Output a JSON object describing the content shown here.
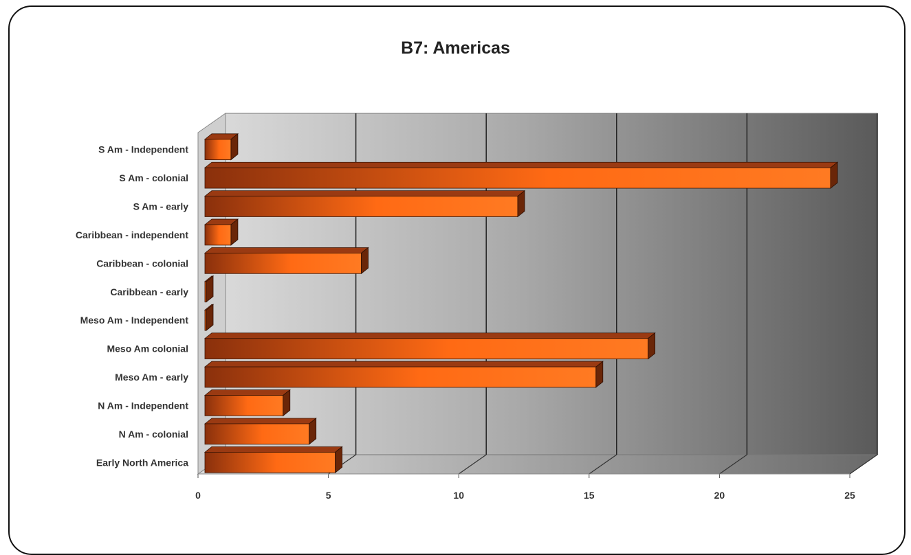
{
  "chart_data": {
    "type": "bar",
    "orientation": "horizontal",
    "style": "3d",
    "title": "B7: Americas",
    "xlabel": "",
    "ylabel": "",
    "xlim": [
      0,
      25
    ],
    "xticks": [
      0,
      5,
      10,
      15,
      20,
      25
    ],
    "grid": true,
    "categories": [
      "S Am - Independent",
      "S Am - colonial",
      "S Am - early",
      "Caribbean - independent",
      "Caribbean - colonial",
      "Caribbean - early",
      "Meso Am - Independent",
      "Meso Am colonial",
      "Meso Am - early",
      "N Am - Independent",
      "N Am - colonial",
      "Early North America"
    ],
    "values": [
      1,
      24,
      12,
      1,
      6,
      0,
      0,
      17,
      15,
      3,
      4,
      5
    ],
    "colors": {
      "bar": "#ff6a14",
      "bar_dark": "#6a2608",
      "bar_top": "#9a3a12"
    }
  }
}
